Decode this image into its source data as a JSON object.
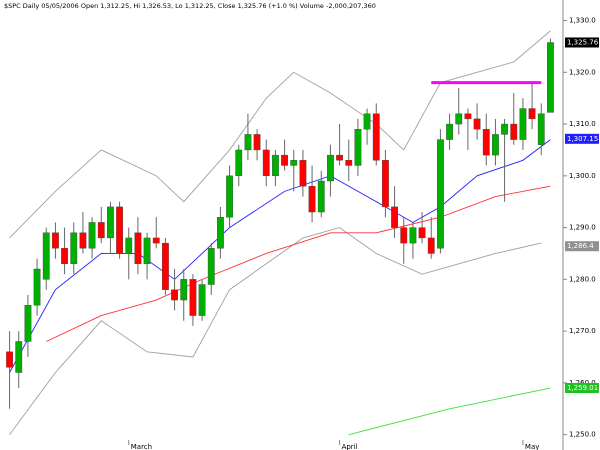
{
  "chart_data": {
    "type": "candlestick",
    "title": "$SPC Daily 05/05/2006 Open 1,312.25, Hi 1,326.53, Lo 1,312.25, Close 1,325.76 (+1.0 %) Volume -2,000,207,360",
    "categories": [
      null,
      null,
      null,
      null,
      null,
      null,
      null,
      null,
      null,
      null,
      null,
      null,
      null,
      "March",
      null,
      null,
      null,
      null,
      null,
      null,
      null,
      null,
      null,
      null,
      null,
      null,
      null,
      null,
      null,
      null,
      null,
      null,
      null,
      null,
      null,
      null,
      "April",
      null,
      null,
      null,
      null,
      null,
      null,
      null,
      null,
      null,
      null,
      null,
      null,
      null,
      null,
      null,
      null,
      null,
      null,
      null,
      "May",
      null,
      null,
      null
    ],
    "open": [
      1266,
      1262,
      1268,
      1275,
      1280,
      1289,
      1286,
      1283,
      1289,
      1286,
      1291,
      1288,
      1294,
      1285,
      1289,
      1283,
      1288,
      1287,
      1278,
      1276,
      1280,
      1273,
      1279,
      1286,
      1292,
      1300,
      1305,
      1308,
      1305,
      1300,
      1304,
      1302,
      1303,
      1298,
      1293,
      1299,
      1304,
      1303,
      1302,
      1309,
      1312,
      1303,
      1294,
      1290,
      1287,
      1290,
      1288,
      1286,
      1307,
      1310,
      1312,
      1311,
      1309,
      1304,
      1308,
      1310,
      1307,
      1313,
      1306,
      1312.25
    ],
    "high": [
      1270,
      1270,
      1277,
      1284,
      1290,
      1291,
      1290,
      1291,
      1293,
      1292,
      1294,
      1295,
      1295,
      1290,
      1292,
      1289,
      1292,
      1288,
      1282,
      1282,
      1281,
      1280,
      1287,
      1294,
      1302,
      1306,
      1312,
      1309,
      1307,
      1305,
      1307,
      1305,
      1305,
      1302,
      1301,
      1306,
      1310,
      1307,
      1311,
      1313,
      1314,
      1305,
      1298,
      1292,
      1291,
      1293,
      1292,
      1309,
      1312,
      1317,
      1313,
      1314,
      1312,
      1311,
      1311,
      1316,
      1315,
      1318,
      1314,
      1326.53
    ],
    "low": [
      1255,
      1259,
      1265,
      1273,
      1278,
      1284,
      1281,
      1281,
      1285,
      1284,
      1287,
      1285,
      1284,
      1280,
      1281,
      1280,
      1286,
      1277,
      1274,
      1272,
      1271,
      1272,
      1277,
      1284,
      1290,
      1298,
      1303,
      1303,
      1298,
      1298,
      1301,
      1297,
      1296,
      1291,
      1292,
      1296,
      1302,
      1299,
      1300,
      1306,
      1302,
      1292,
      1288,
      1283,
      1284,
      1287,
      1284,
      1285,
      1305,
      1308,
      1305,
      1307,
      1302,
      1302,
      1295,
      1306,
      1305,
      1309,
      1304,
      1312.25
    ],
    "close": [
      1263,
      1268,
      1275,
      1282,
      1289,
      1286,
      1283,
      1289,
      1286,
      1291,
      1288,
      1294,
      1285,
      1288,
      1283,
      1288,
      1287,
      1278,
      1276,
      1280,
      1273,
      1279,
      1286,
      1292,
      1300,
      1305,
      1308,
      1305,
      1300,
      1304,
      1302,
      1303,
      1298,
      1293,
      1299,
      1304,
      1303,
      1302,
      1309,
      1312,
      1303,
      1294,
      1290,
      1287,
      1290,
      1288,
      1285,
      1307,
      1310,
      1312,
      1311,
      1309,
      1304,
      1308,
      1310,
      1307,
      1313,
      1311,
      1312,
      1325.76
    ],
    "up_color": "#00b000",
    "down_color": "#ff0000",
    "overlays": [
      {
        "color": "#a0a0a0",
        "x": [
          0,
          5,
          10,
          16,
          19,
          24,
          28,
          31,
          35,
          40,
          43,
          47,
          51,
          55,
          59
        ],
        "values": [
          1288,
          1297,
          1305,
          1300,
          1295,
          1305,
          1315,
          1320,
          1316,
          1310,
          1305,
          1318,
          1320,
          1322,
          1328
        ]
      },
      {
        "color": "#a0a0a0",
        "x": [
          0,
          5,
          10,
          15,
          20,
          24,
          32,
          36,
          40,
          45,
          49,
          53,
          58
        ],
        "values": [
          1250,
          1262,
          1272,
          1266,
          1265,
          1278,
          1288,
          1290,
          1285,
          1281,
          1283,
          1285,
          1287
        ]
      },
      {
        "color": "#2020ff",
        "x": [
          0,
          5,
          10,
          14,
          18,
          24,
          30,
          35,
          39,
          44,
          47,
          51,
          56,
          59
        ],
        "values": [
          1262,
          1278,
          1285,
          1285,
          1280,
          1290,
          1297,
          1300,
          1296,
          1291,
          1294,
          1300,
          1303,
          1307
        ]
      },
      {
        "color": "#ff3030",
        "x": [
          4,
          10,
          16,
          21,
          28,
          35,
          40,
          47,
          53,
          59
        ],
        "values": [
          1268,
          1273,
          1276,
          1280,
          1285,
          1289,
          1289,
          1292,
          1296,
          1298
        ]
      },
      {
        "color": "#40e040",
        "x": [
          37,
          48,
          59
        ],
        "values": [
          1250,
          1255,
          1259
        ]
      }
    ],
    "hlines": [
      {
        "value": 1318,
        "x": [
          46,
          58
        ],
        "color": "#ff00ff"
      }
    ],
    "last_labels": [
      {
        "value": 1325.76,
        "label": "1,325.76",
        "color": "#000000"
      },
      {
        "value": 1307.15,
        "label": "1,307.15",
        "color": "#2020ff"
      },
      {
        "value": 1286.4,
        "label": "1,286.4",
        "color": "#909090"
      },
      {
        "value": 1259.01,
        "label": "1,259.01",
        "color": "#20c020"
      }
    ],
    "ylim": [
      1248,
      1333
    ],
    "yticks": [
      {
        "value": 1250,
        "label": "1,250.0"
      },
      {
        "value": 1260,
        "label": "1,260.0"
      },
      {
        "value": 1270,
        "label": "1,270.0"
      },
      {
        "value": 1280,
        "label": "1,280.0"
      },
      {
        "value": 1290,
        "label": "1,290.0"
      },
      {
        "value": 1300,
        "label": "1,300.0"
      },
      {
        "value": 1310,
        "label": "1,310.0"
      },
      {
        "value": 1320,
        "label": "1,320.0"
      },
      {
        "value": 1330,
        "label": "1,330.0"
      }
    ]
  }
}
